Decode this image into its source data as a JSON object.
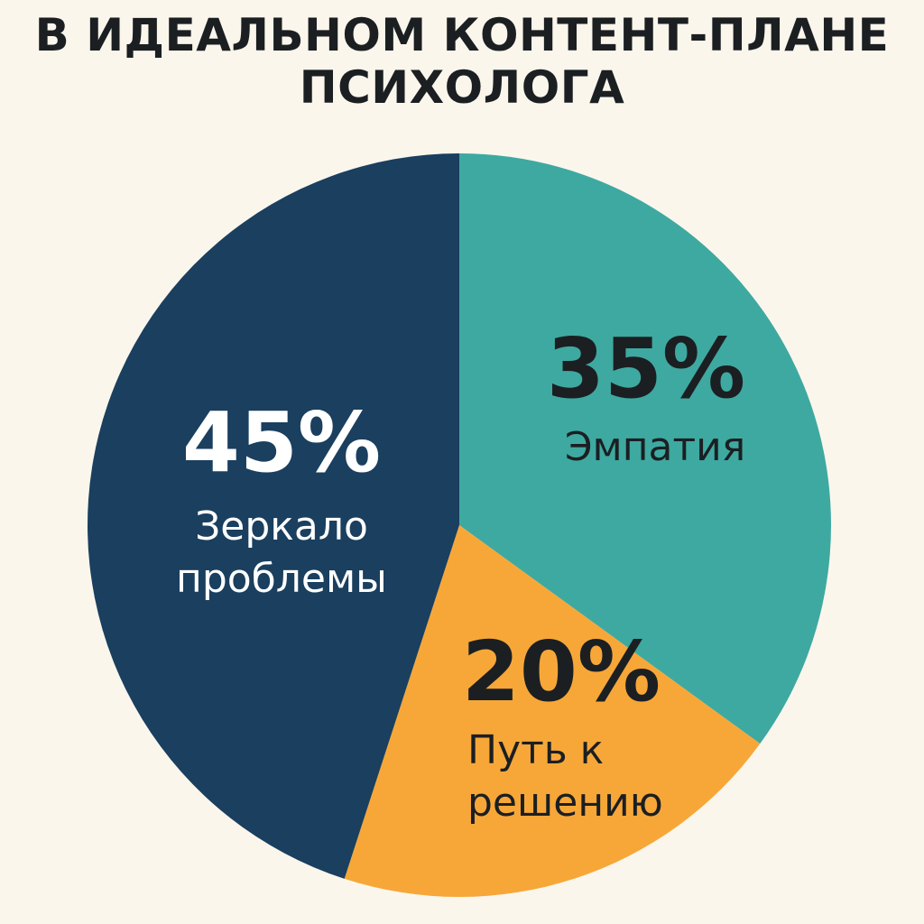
{
  "title_lines": [
    "В ИДЕАЛЬНОМ КОНТЕНТ-ПЛАНЕ",
    "ПСИХОЛОГА"
  ],
  "chart_data": {
    "type": "pie",
    "title": "В ИДЕАЛЬНОМ КОНТЕНТ-ПЛАНЕ ПСИХОЛОГА",
    "slices": [
      {
        "label": "Эмпатия",
        "value": 35,
        "value_label": "35%",
        "color": "#3ea9a1",
        "text_color": "#1b1f22"
      },
      {
        "label": "Путь к решению",
        "value": 20,
        "value_label": "20%",
        "color": "#f7a738",
        "text_color": "#1b1f22"
      },
      {
        "label": "Зеркало проблемы",
        "value": 45,
        "value_label": "45%",
        "color": "#1a3f5f",
        "text_color": "#ffffff"
      }
    ],
    "legend": false
  }
}
